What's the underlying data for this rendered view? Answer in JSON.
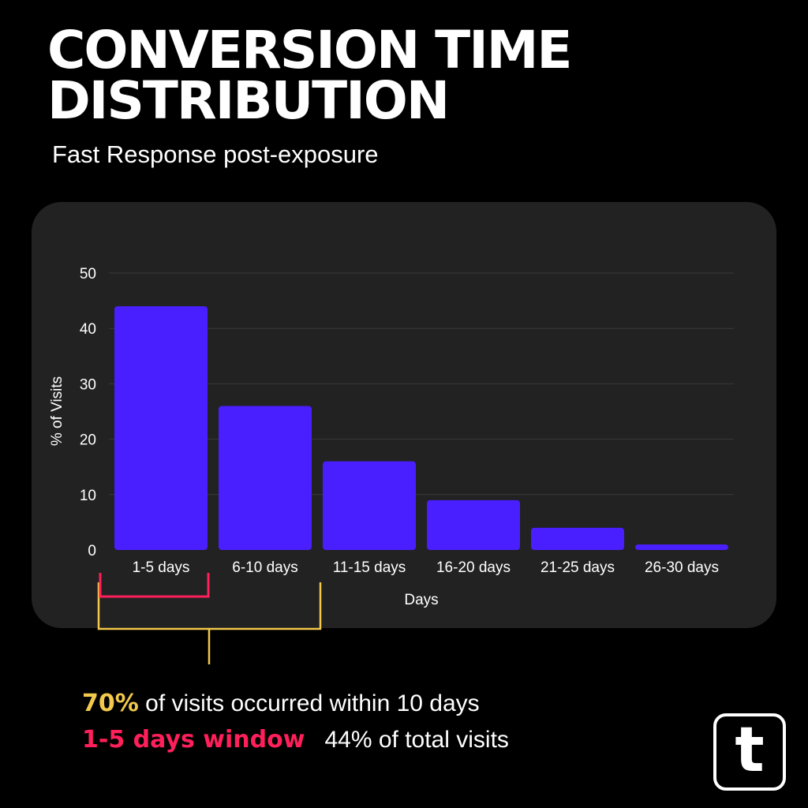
{
  "title_lines": [
    "CONVERSION TIME",
    "DISTRIBUTION"
  ],
  "subtitle": "Fast Response post-exposure",
  "colors": {
    "background": "#000000",
    "card": "#222222",
    "bar": "#4a1fff",
    "grid": "#3a3a3a",
    "highlight_yellow": "#f2c94c",
    "highlight_pink": "#ff1f5a"
  },
  "chart_data": {
    "type": "bar",
    "categories": [
      "1-5 days",
      "6-10 days",
      "11-15 days",
      "16-20 days",
      "21-25 days",
      "26-30 days"
    ],
    "values": [
      44,
      26,
      16,
      9,
      4,
      1
    ],
    "xlabel": "Days",
    "ylabel": "% of Visits",
    "ylim": [
      0,
      50
    ],
    "yticks": [
      0,
      10,
      20,
      30,
      40,
      50
    ],
    "grid": true,
    "legend": false
  },
  "notes": {
    "line1_highlight": "70%",
    "line1_text": " of visits occurred within 10 days",
    "line2_highlight": "1-5 days window",
    "line2_text": "44% of total visits"
  },
  "logo": {
    "letter": "t",
    "icon": "t-logo-icon"
  }
}
